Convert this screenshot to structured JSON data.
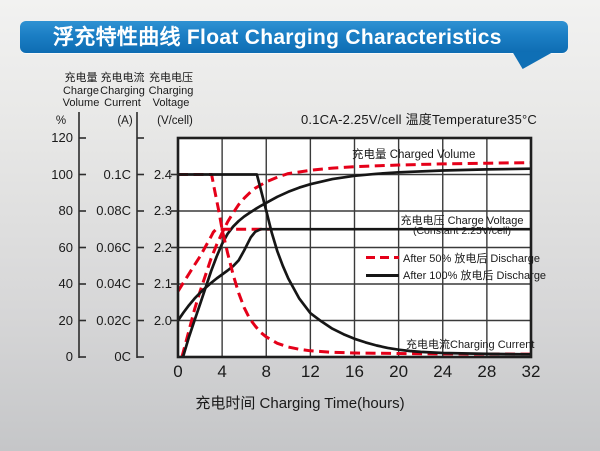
{
  "banner": {
    "title": "浮充特性曲线 Float Charging Characteristics"
  },
  "condition": "0.1CA-2.25V/cell  温度Temperature35°C",
  "axis_headers": {
    "volume": {
      "zh": "充电量",
      "en1": "Charge",
      "en2": "Volume",
      "unit": "%"
    },
    "current": {
      "zh": "充电电流",
      "en1": "Charging",
      "en2": "Current",
      "unit": "(A)"
    },
    "voltage": {
      "zh": "充电电压",
      "en1": "Charging",
      "en2": "Voltage",
      "unit": "(V/cell)"
    }
  },
  "curve_labels": {
    "charged_volume": "充电量 Charged Volume",
    "charge_voltage_line1": "充电电压 Charge Voltage",
    "charge_voltage_line2": "(Constant 2.25V/cell)",
    "charging_current": "充电电流Charging Current"
  },
  "legend": {
    "items": [
      {
        "label": "After 50% 放电后 Discharge",
        "style": "dashed",
        "color": "#e50019"
      },
      {
        "label": "After 100% 放电后 Discharge",
        "style": "solid",
        "color": "#161616"
      }
    ]
  },
  "x_axis": {
    "title": "充电时间 Charging Time(hours)"
  },
  "colors": {
    "red": "#e50019",
    "black": "#161616",
    "grid": "#3a3a3a",
    "border": "#1e1e1e",
    "banner_blue": "#0e6db3"
  },
  "chart_data": {
    "type": "line",
    "title": "浮充特性曲线 Float Charging Characteristics",
    "condition": "0.1CA-2.25V/cell 温度Temperature35°C",
    "xlabel": "充电时间 Charging Time(hours)",
    "x_range": [
      0,
      32
    ],
    "x_ticks": [
      "0",
      "4",
      "8",
      "12",
      "16",
      "20",
      "24",
      "28",
      "32"
    ],
    "grid": true,
    "legend_position": "inside-right",
    "y_axes": {
      "volume": {
        "label": "充电量 Charge Volume",
        "unit": "%",
        "range": [
          0,
          120
        ],
        "ticks": [
          "120",
          "100",
          "80",
          "60",
          "40",
          "20",
          "0"
        ]
      },
      "current": {
        "label": "充电电流 Charging Current",
        "unit": "A",
        "range": [
          0,
          0.12
        ],
        "ticks": [
          "0.1C",
          "0.08C",
          "0.06C",
          "0.04C",
          "0.02C",
          "0C"
        ]
      },
      "voltage": {
        "label": "充电电压 Charging Voltage",
        "unit": "V/cell",
        "range": [
          1.9,
          2.5
        ],
        "ticks": [
          "2.4",
          "2.3",
          "2.2",
          "2.1",
          "2.0"
        ]
      }
    },
    "series": [
      {
        "name": "Charged Volume — After 50% 放电后 Discharge",
        "axis": "volume",
        "color": "#e50019",
        "style": "dashed",
        "points": [
          [
            0.35,
            0
          ],
          [
            0.8,
            10
          ],
          [
            1.5,
            26
          ],
          [
            2,
            36
          ],
          [
            2.5,
            45
          ],
          [
            3,
            54
          ],
          [
            3.5,
            61.5
          ],
          [
            4,
            68
          ],
          [
            4.5,
            74
          ],
          [
            5,
            79
          ],
          [
            5.5,
            83.5
          ],
          [
            6,
            87
          ],
          [
            6.5,
            90
          ],
          [
            7,
            92.5
          ],
          [
            8,
            96
          ],
          [
            9,
            98.5
          ],
          [
            10,
            100.5
          ],
          [
            12,
            102.3
          ],
          [
            14,
            103.5
          ],
          [
            16,
            104.3
          ],
          [
            20,
            105.2
          ],
          [
            24,
            105.8
          ],
          [
            28,
            106.2
          ],
          [
            32,
            106.5
          ]
        ]
      },
      {
        "name": "Charged Volume — After 100% 放电后 Discharge",
        "axis": "volume",
        "color": "#161616",
        "style": "solid",
        "points": [
          [
            0.45,
            0
          ],
          [
            1,
            11
          ],
          [
            1.5,
            20
          ],
          [
            2,
            29
          ],
          [
            2.5,
            38
          ],
          [
            3,
            47
          ],
          [
            3.5,
            55
          ],
          [
            4,
            62
          ],
          [
            4.5,
            67.5
          ],
          [
            5,
            71.5
          ],
          [
            5.5,
            74.5
          ],
          [
            6,
            77
          ],
          [
            6.5,
            79
          ],
          [
            7,
            81
          ],
          [
            7.5,
            82.8
          ],
          [
            8,
            84.5
          ],
          [
            9,
            87.8
          ],
          [
            10,
            90.5
          ],
          [
            11,
            92.8
          ],
          [
            12,
            94.7
          ],
          [
            14,
            97.5
          ],
          [
            16,
            99.3
          ],
          [
            18,
            100.4
          ],
          [
            20,
            101.2
          ],
          [
            24,
            102.2
          ],
          [
            28,
            102.8
          ],
          [
            32,
            103.2
          ]
        ]
      },
      {
        "name": "Charge Voltage — After 50% 放电后 Discharge (constant 2.25V/cell after CV point)",
        "axis": "voltage",
        "color": "#e50019",
        "style": "dashed",
        "points": [
          [
            0,
            2.08
          ],
          [
            0.5,
            2.104
          ],
          [
            1,
            2.128
          ],
          [
            1.5,
            2.152
          ],
          [
            2,
            2.176
          ],
          [
            2.5,
            2.203
          ],
          [
            3,
            2.23
          ],
          [
            3.2,
            2.242
          ],
          [
            3.45,
            2.25
          ],
          [
            8.3,
            2.25
          ]
        ]
      },
      {
        "name": "Charge Voltage — After 100% 放电后 Discharge (constant 2.25V/cell after CV point)",
        "axis": "voltage",
        "color": "#161616",
        "style": "solid",
        "points": [
          [
            0,
            2.0
          ],
          [
            0.5,
            2.022
          ],
          [
            1,
            2.042
          ],
          [
            1.5,
            2.06
          ],
          [
            2,
            2.076
          ],
          [
            2.5,
            2.09
          ],
          [
            3,
            2.103
          ],
          [
            3.5,
            2.115
          ],
          [
            4,
            2.126
          ],
          [
            4.5,
            2.137
          ],
          [
            5,
            2.149
          ],
          [
            5.5,
            2.165
          ],
          [
            6,
            2.192
          ],
          [
            6.3,
            2.21
          ],
          [
            6.6,
            2.228
          ],
          [
            7,
            2.243
          ],
          [
            7.5,
            2.25
          ],
          [
            32,
            2.25
          ]
        ]
      },
      {
        "name": "Charging Current — After 50% 放电后 Discharge",
        "axis": "current",
        "color": "#e50019",
        "style": "dashed",
        "points": [
          [
            0,
            0.1
          ],
          [
            3.05,
            0.1
          ],
          [
            3.3,
            0.092
          ],
          [
            3.7,
            0.08
          ],
          [
            4,
            0.07
          ],
          [
            4.5,
            0.057
          ],
          [
            5,
            0.045
          ],
          [
            5.5,
            0.035
          ],
          [
            6,
            0.027
          ],
          [
            6.5,
            0.021
          ],
          [
            7,
            0.017
          ],
          [
            7.5,
            0.0135
          ],
          [
            8,
            0.011
          ],
          [
            9,
            0.0075
          ],
          [
            10,
            0.0055
          ],
          [
            11,
            0.0042
          ],
          [
            12,
            0.0034
          ],
          [
            14,
            0.0026
          ],
          [
            16,
            0.0022
          ],
          [
            20,
            0.0019
          ],
          [
            24,
            0.0017
          ],
          [
            32,
            0.0016
          ]
        ]
      },
      {
        "name": "Charging Current — After 100% 放电后 Discharge",
        "axis": "current",
        "color": "#161616",
        "style": "solid",
        "points": [
          [
            0,
            0.1
          ],
          [
            7.15,
            0.1
          ],
          [
            7.5,
            0.092
          ],
          [
            8,
            0.08
          ],
          [
            8.5,
            0.068
          ],
          [
            9,
            0.058
          ],
          [
            9.5,
            0.05
          ],
          [
            10,
            0.043
          ],
          [
            11,
            0.032
          ],
          [
            12,
            0.024
          ],
          [
            13,
            0.0195
          ],
          [
            14,
            0.0155
          ],
          [
            15,
            0.0125
          ],
          [
            16,
            0.01
          ],
          [
            17,
            0.008
          ],
          [
            18,
            0.0063
          ],
          [
            19,
            0.005
          ],
          [
            20,
            0.004
          ],
          [
            21,
            0.0033
          ],
          [
            22,
            0.0028
          ],
          [
            24,
            0.0022
          ],
          [
            28,
            0.0017
          ],
          [
            32,
            0.0015
          ]
        ]
      }
    ]
  }
}
